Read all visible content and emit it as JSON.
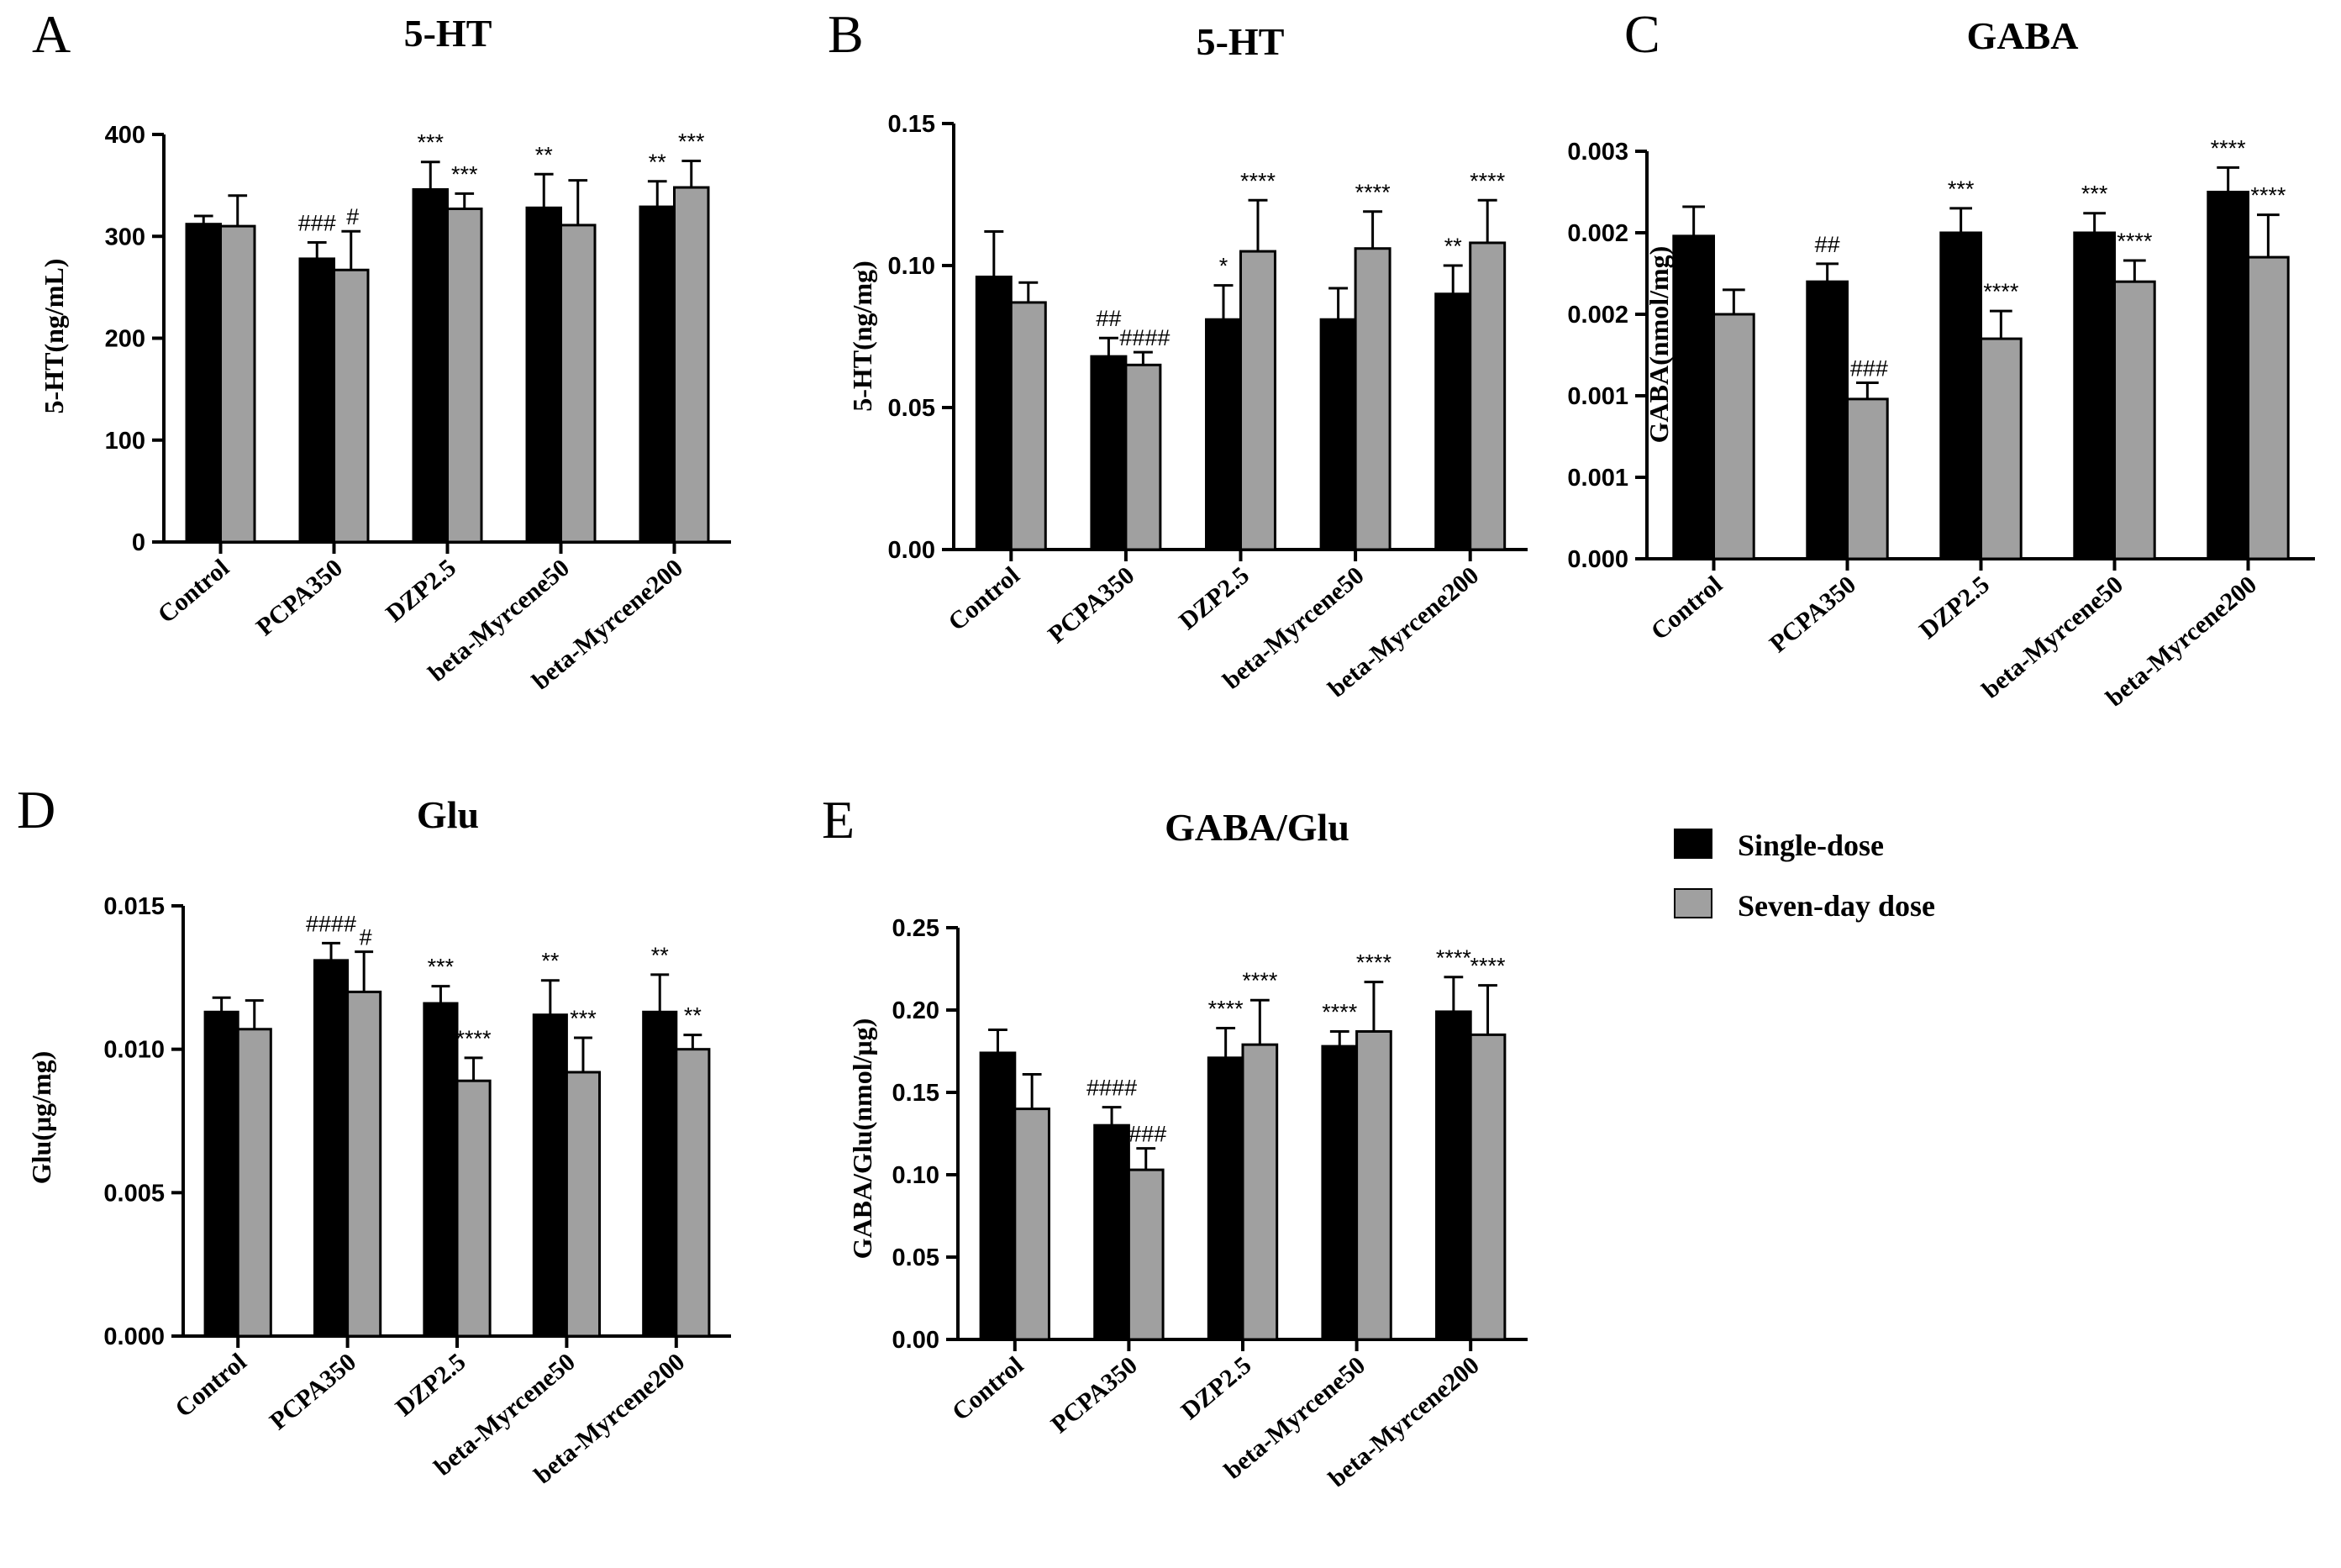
{
  "chart_data": [
    {
      "panel": "A",
      "type": "bar",
      "title": "5-HT",
      "ylabel": "5-HT(ng/mL)",
      "ylim": [
        0,
        400
      ],
      "yticks": [
        0,
        100,
        200,
        300,
        400
      ],
      "tick_labels": [
        "0",
        "100",
        "200",
        "300",
        "400"
      ],
      "categories": [
        "Control",
        "PCPA350",
        "DZP2.5",
        "beta-Myrcene50",
        "beta-Myrcene200"
      ],
      "series": [
        {
          "name": "Single-dose",
          "color": "#000000",
          "values": [
            312,
            278,
            346,
            328,
            329
          ],
          "errors": [
            8,
            16,
            27,
            33,
            25
          ],
          "annotations": [
            "",
            "###",
            "***",
            "**",
            "**"
          ]
        },
        {
          "name": "Seven-day dose",
          "color": "#a0a0a0",
          "values": [
            310,
            267,
            327,
            311,
            348
          ],
          "errors": [
            30,
            38,
            15,
            44,
            26
          ],
          "annotations": [
            "",
            "#",
            "***",
            "",
            "***"
          ]
        }
      ]
    },
    {
      "panel": "B",
      "type": "bar",
      "title": "5-HT",
      "ylabel": "5-HT(ng/mg)",
      "ylim": [
        0,
        0.15
      ],
      "yticks": [
        0,
        0.05,
        0.1,
        0.15
      ],
      "tick_labels": [
        "0.00",
        "0.05",
        "0.10",
        "0.15"
      ],
      "categories": [
        "Control",
        "PCPA350",
        "DZP2.5",
        "beta-Myrcene50",
        "beta-Myrcene200"
      ],
      "series": [
        {
          "name": "Single-dose",
          "color": "#000000",
          "values": [
            0.096,
            0.068,
            0.081,
            0.081,
            0.09
          ],
          "errors": [
            0.016,
            0.0065,
            0.012,
            0.011,
            0.01
          ],
          "annotations": [
            "",
            "##",
            "*",
            "",
            "**"
          ]
        },
        {
          "name": "Seven-day dose",
          "color": "#a0a0a0",
          "values": [
            0.087,
            0.065,
            0.105,
            0.106,
            0.108
          ],
          "errors": [
            0.007,
            0.0045,
            0.018,
            0.013,
            0.015
          ],
          "annotations": [
            "",
            "####",
            "****",
            "****",
            "****"
          ]
        }
      ]
    },
    {
      "panel": "C",
      "type": "bar",
      "title": "GABA",
      "ylabel": "GABA(nmol/mg)",
      "ylim": [
        0,
        0.0025
      ],
      "yticks": [
        0,
        0.0005,
        0.001,
        0.0015,
        0.002,
        0.0025
      ],
      "tick_labels": [
        "0.000",
        "0.001",
        "0.001",
        "0.002",
        "0.002",
        "0.003"
      ],
      "categories": [
        "Control",
        "PCPA350",
        "DZP2.5",
        "beta-Myrcene50",
        "beta-Myrcene200"
      ],
      "series": [
        {
          "name": "Single-dose",
          "color": "#000000",
          "values": [
            0.00198,
            0.0017,
            0.002,
            0.002,
            0.00225
          ],
          "errors": [
            0.00018,
            0.00011,
            0.00015,
            0.00012,
            0.00015
          ],
          "annotations": [
            "",
            "##",
            "***",
            "***",
            "****"
          ]
        },
        {
          "name": "Seven-day dose",
          "color": "#a0a0a0",
          "values": [
            0.0015,
            0.00098,
            0.00135,
            0.0017,
            0.00185
          ],
          "errors": [
            0.00015,
            0.0001,
            0.00017,
            0.00013,
            0.00026
          ],
          "annotations": [
            "",
            "###",
            "****",
            "****",
            "****"
          ]
        }
      ]
    },
    {
      "panel": "D",
      "type": "bar",
      "title": "Glu",
      "ylabel": "Glu(μg/mg)",
      "ylim": [
        0,
        0.015
      ],
      "yticks": [
        0,
        0.005,
        0.01,
        0.015
      ],
      "tick_labels": [
        "0.000",
        "0.005",
        "0.010",
        "0.015"
      ],
      "categories": [
        "Control",
        "PCPA350",
        "DZP2.5",
        "beta-Myrcene50",
        "beta-Myrcene200"
      ],
      "series": [
        {
          "name": "Single-dose",
          "color": "#000000",
          "values": [
            0.0113,
            0.0131,
            0.0116,
            0.0112,
            0.0113
          ],
          "errors": [
            0.0005,
            0.0006,
            0.0006,
            0.0012,
            0.0013
          ],
          "annotations": [
            "",
            "####",
            "***",
            "**",
            "**"
          ]
        },
        {
          "name": "Seven-day dose",
          "color": "#a0a0a0",
          "values": [
            0.0107,
            0.012,
            0.0089,
            0.0092,
            0.01
          ],
          "errors": [
            0.001,
            0.0014,
            0.0008,
            0.0012,
            0.0005
          ],
          "annotations": [
            "",
            "#",
            "****",
            "***",
            "**"
          ]
        }
      ]
    },
    {
      "panel": "E",
      "type": "bar",
      "title": "GABA/Glu",
      "ylabel": "GABA/Glu(nmol/μg)",
      "ylim": [
        0,
        0.25
      ],
      "yticks": [
        0,
        0.05,
        0.1,
        0.15,
        0.2,
        0.25
      ],
      "tick_labels": [
        "0.00",
        "0.05",
        "0.10",
        "0.15",
        "0.20",
        "0.25"
      ],
      "categories": [
        "Control",
        "PCPA350",
        "DZP2.5",
        "beta-Myrcene50",
        "beta-Myrcene200"
      ],
      "series": [
        {
          "name": "Single-dose",
          "color": "#000000",
          "values": [
            0.174,
            0.13,
            0.171,
            0.178,
            0.199
          ],
          "errors": [
            0.014,
            0.011,
            0.018,
            0.009,
            0.021
          ],
          "annotations": [
            "",
            "####",
            "****",
            "****",
            "****"
          ]
        },
        {
          "name": "Seven-day dose",
          "color": "#a0a0a0",
          "values": [
            0.14,
            0.103,
            0.179,
            0.187,
            0.185
          ],
          "errors": [
            0.021,
            0.013,
            0.027,
            0.03,
            0.03
          ],
          "annotations": [
            "",
            "###",
            "****",
            "****",
            "****"
          ]
        }
      ]
    }
  ],
  "legend": {
    "items": [
      {
        "label": "Single-dose",
        "color": "#000000"
      },
      {
        "label": "Seven-day dose",
        "color": "#a0a0a0"
      }
    ]
  }
}
